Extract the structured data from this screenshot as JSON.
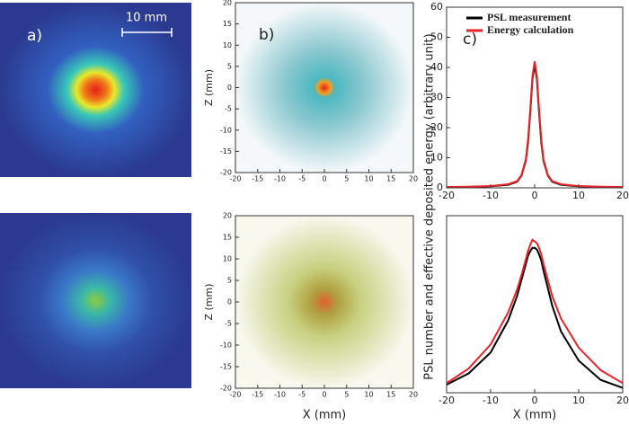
{
  "panels": {
    "a": {
      "label": "a)",
      "scale_bar": "10 mm"
    }
  },
  "chart_data": [
    {
      "type": "density",
      "label": "b)",
      "ylabel": "Z (mm)",
      "xlim": [
        -20,
        20
      ],
      "ylim": [
        -20,
        20
      ],
      "xticks": [
        -20,
        -15,
        -10,
        -5,
        0,
        5,
        10,
        15,
        20
      ],
      "yticks": [
        -20,
        -15,
        -10,
        -5,
        0,
        5,
        10,
        15,
        20
      ]
    },
    {
      "type": "density",
      "ylabel": "Z (mm)",
      "xlabel": "X (mm)",
      "xlim": [
        -20,
        20
      ],
      "ylim": [
        -20,
        20
      ],
      "xticks": [
        -20,
        -15,
        -10,
        -5,
        0,
        5,
        10,
        15,
        20
      ],
      "yticks": [
        -20,
        -15,
        -10,
        -5,
        0,
        5,
        10,
        15,
        20
      ]
    },
    {
      "type": "line",
      "label": "c)",
      "ylabel": "PSL number and effective deposited energy (arbitrary unit)",
      "xlim": [
        -20,
        20
      ],
      "ylim": [
        0,
        60
      ],
      "xticks": [
        -20,
        -10,
        0,
        10,
        20
      ],
      "yticks": [
        0,
        10,
        20,
        30,
        40,
        50,
        60
      ],
      "legend": "upper right",
      "x": [
        -20,
        -15,
        -10,
        -6,
        -4,
        -3,
        -2,
        -1.5,
        -1,
        -0.5,
        0,
        0.5,
        1,
        1.5,
        2,
        3,
        4,
        6,
        10,
        15,
        20
      ],
      "series": [
        {
          "name": "PSL measurement",
          "color": "#000000",
          "values": [
            0.2,
            0.3,
            0.5,
            1,
            2,
            4,
            9,
            15,
            25,
            36,
            41,
            36,
            25,
            15,
            9,
            4,
            2,
            1,
            0.5,
            0.3,
            0.2
          ]
        },
        {
          "name": "Energy calculation",
          "color": "#e8232a",
          "values": [
            0.3,
            0.4,
            0.6,
            1.2,
            2.2,
            4.2,
            9.5,
            16,
            26,
            37,
            42,
            37,
            26,
            16,
            9.5,
            4.2,
            2.2,
            1.2,
            0.6,
            0.4,
            0.3
          ]
        }
      ]
    },
    {
      "type": "line",
      "xlabel": "X (mm)",
      "xlim": [
        -20,
        20
      ],
      "ylim": [
        0,
        11
      ],
      "xticks": [
        -20,
        -10,
        0,
        10,
        20
      ],
      "x": [
        -20,
        -15,
        -10,
        -6,
        -4,
        -3,
        -2,
        -1.5,
        -1,
        -0.5,
        0,
        0.5,
        1,
        1.5,
        2,
        3,
        4,
        6,
        10,
        15,
        20
      ],
      "series": [
        {
          "color": "#000000",
          "values": [
            0.5,
            1.2,
            2.5,
            4.5,
            6,
            7,
            8,
            8.5,
            8.8,
            9,
            9,
            8.9,
            8.6,
            8.2,
            7.6,
            6.5,
            5.4,
            3.8,
            2,
            0.8,
            0.3
          ]
        },
        {
          "color": "#e8232a",
          "values": [
            0.6,
            1.5,
            3,
            5,
            6.4,
            7.3,
            8.3,
            8.8,
            9.2,
            9.5,
            9.4,
            9.3,
            9,
            8.6,
            8,
            7,
            6,
            4.6,
            2.8,
            1.4,
            0.6
          ]
        }
      ]
    }
  ]
}
